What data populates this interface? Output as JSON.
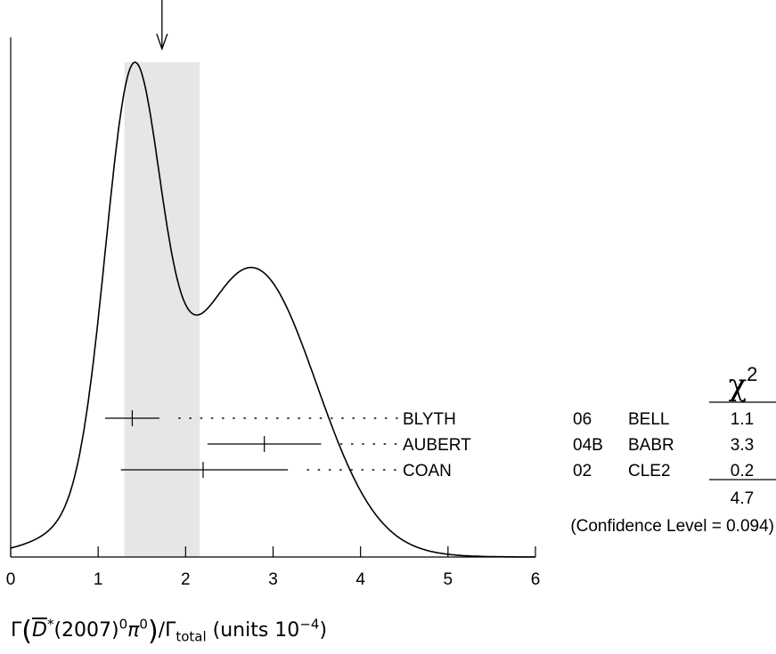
{
  "chart_data": {
    "type": "ideogram",
    "xlim": [
      0,
      6
    ],
    "x_ticks": [
      "0",
      "1",
      "2",
      "3",
      "4",
      "5",
      "6"
    ],
    "xlabel": {
      "prefix": "Γ",
      "particle": "D",
      "star": "*",
      "mass": "(2007)",
      "sup0": "0",
      "pi": "π",
      "sup_pi": "0",
      "over": "/Γ",
      "sub": "total",
      "units": "(units 10",
      "exp": "−4",
      "close": ")"
    },
    "average": 1.73,
    "band": [
      1.3,
      2.16
    ],
    "measurements": [
      {
        "author": "BLYTH",
        "year": "06",
        "experiment": "BELL",
        "value": 1.39,
        "low": 1.08,
        "high": 1.7,
        "chi2": "1.1"
      },
      {
        "author": "AUBERT",
        "year": "04B",
        "experiment": "BABR",
        "value": 2.9,
        "low": 2.25,
        "high": 3.55,
        "chi2": "3.3"
      },
      {
        "author": "COAN",
        "year": "02",
        "experiment": "CLE2",
        "value": 2.2,
        "low": 1.26,
        "high": 3.17,
        "chi2": "0.2"
      }
    ],
    "chi2_header": "χ²",
    "chi2_symbol": "χ",
    "chi2_power": "2",
    "chi2_total": "4.7",
    "confidence_level": "(Confidence Level = 0.094)"
  },
  "colors": {
    "band": "#e6e6e6",
    "line": "#000000"
  }
}
